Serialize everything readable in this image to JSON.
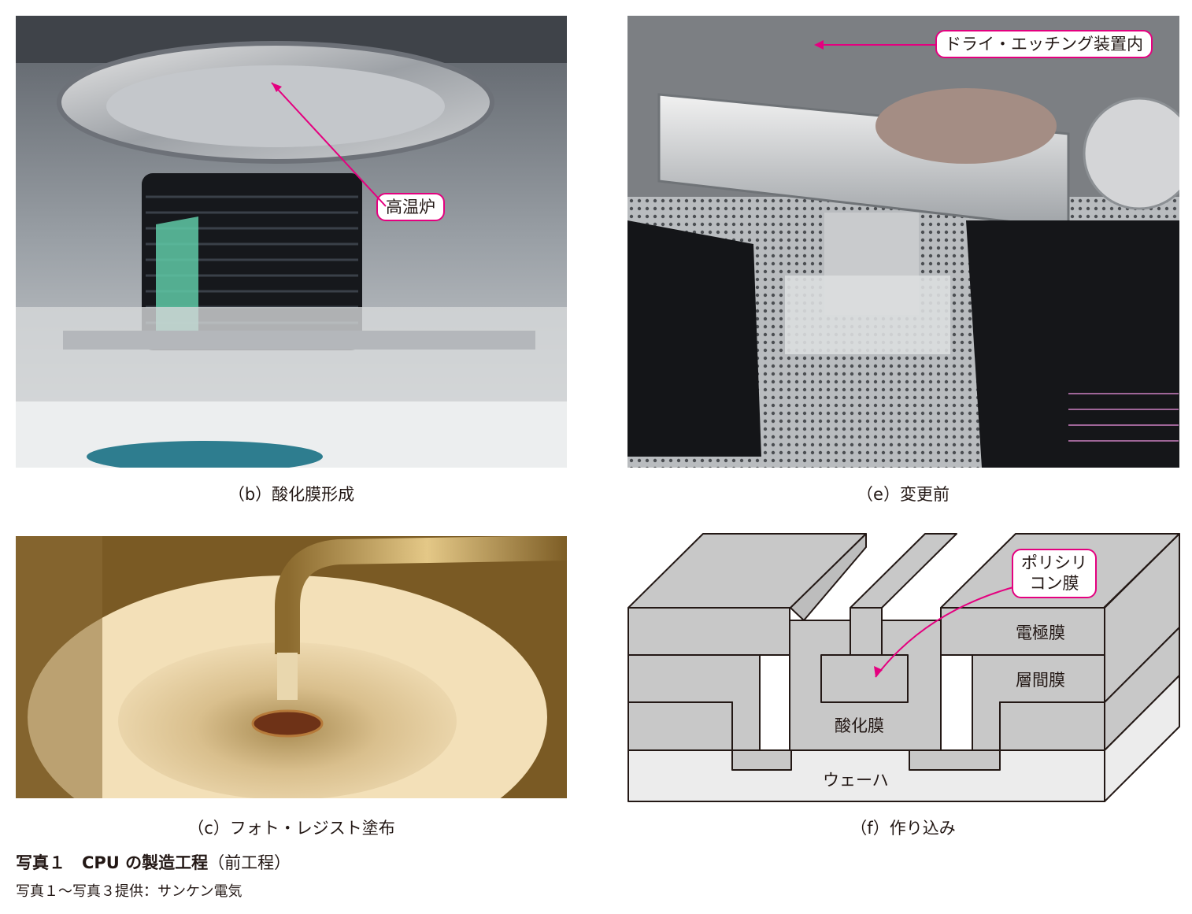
{
  "panels": {
    "b": {
      "caption": "（b）酸化膜形成",
      "callout": "高温炉"
    },
    "e": {
      "caption": "（e）変更前",
      "callout": "ドライ・エッチング装置内"
    },
    "c": {
      "caption": "（c）フォト・レジスト塗布"
    },
    "f": {
      "caption": "（f）作り込み",
      "callout_line1": "ポリシリ",
      "callout_line2": "コン膜",
      "layers": {
        "electrode": "電極膜",
        "interlayer": "層間膜",
        "oxide": "酸化膜",
        "wafer": "ウェーハ"
      }
    }
  },
  "figure": {
    "title_main": "写真１　CPU の製造工程",
    "title_suffix": "（前工程）",
    "credit": "写真１～写真３提供：サンケン電気"
  },
  "colors": {
    "accent": "#e4007f",
    "layer_gray": "#c8c8c8",
    "wafer": "#ececec",
    "outline": "#231815"
  }
}
